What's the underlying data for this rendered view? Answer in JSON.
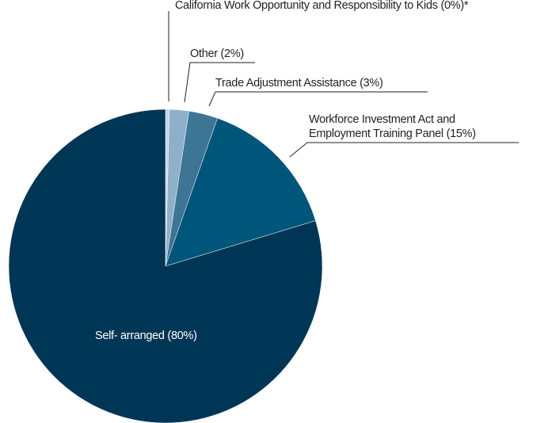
{
  "chart_data": {
    "type": "pie",
    "categories": [
      "California Work Opportunity and Responsibility to Kids",
      "Other",
      "Trade Adjustment Assistance",
      "Workforce Investment Act and Employment Training Panel",
      "Self- arranged"
    ],
    "values": [
      0.4,
      2,
      3,
      15,
      80
    ],
    "value_labels": [
      "(0%)*",
      "(2%)",
      "(3%)",
      "(15%)",
      "(80%)"
    ],
    "colors": [
      "#c6d7e7",
      "#8eb0ca",
      "#3d7595",
      "#00557a",
      "#003655"
    ]
  }
}
